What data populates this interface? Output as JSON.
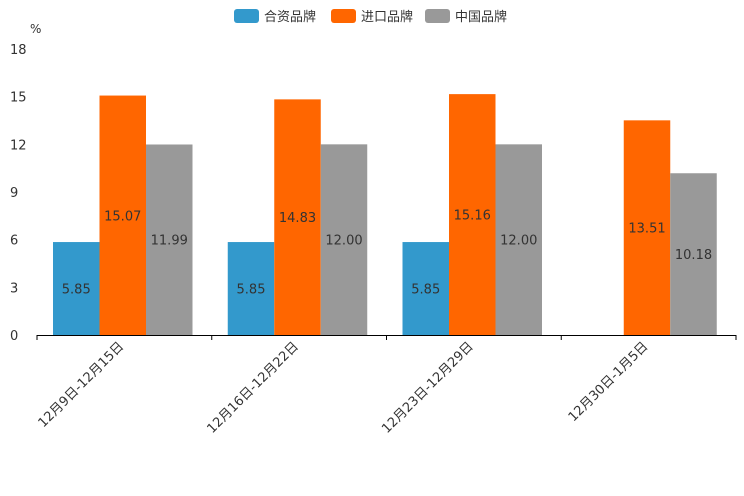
{
  "chart_data": {
    "type": "bar",
    "title": "",
    "xlabel": "",
    "ylabel": "%",
    "ylim": [
      0,
      18
    ],
    "yticks": [
      0,
      3,
      6,
      9,
      12,
      15,
      18
    ],
    "grid": false,
    "legend_position": "top-center",
    "categories": [
      "12月9日-12月15日",
      "12月16日-12月22日",
      "12月23日-12月29日",
      "12月30日-1月5日"
    ],
    "series": [
      {
        "name": "合资品牌",
        "color": "#3399cc",
        "values": [
          5.85,
          5.85,
          5.85,
          null
        ],
        "labels": [
          "5.85",
          "5.85",
          "5.85",
          ""
        ]
      },
      {
        "name": "进口品牌",
        "color": "#ff6600",
        "values": [
          15.07,
          14.83,
          15.16,
          13.51
        ],
        "labels": [
          "15.07",
          "14.83",
          "15.16",
          "13.51"
        ]
      },
      {
        "name": "中国品牌",
        "color": "#999999",
        "values": [
          11.99,
          12.0,
          12.0,
          10.18
        ],
        "labels": [
          "11.99",
          "12.00",
          "12.00",
          "10.18"
        ]
      }
    ]
  }
}
